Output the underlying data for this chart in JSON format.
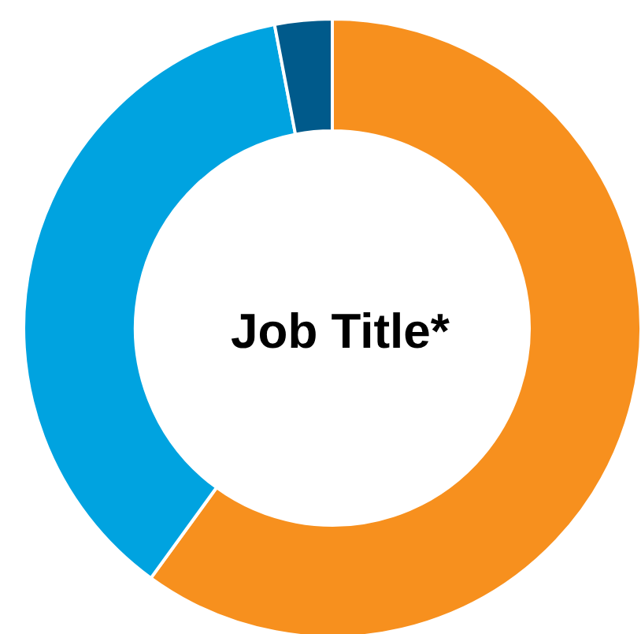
{
  "chart_data": {
    "type": "donut",
    "title": "Job Title*",
    "categories": [
      null,
      null,
      null
    ],
    "values": [
      60,
      37,
      3
    ],
    "colors": [
      "#f7901e",
      "#00a3e0",
      "#005a8b"
    ]
  }
}
